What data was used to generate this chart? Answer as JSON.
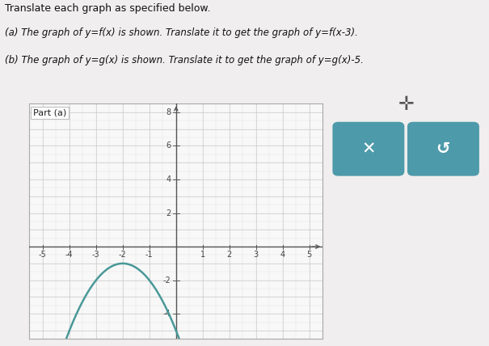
{
  "title_text": "Translate each graph as specified below.",
  "part_a_label": "Part (a)",
  "instruction_a": "(a) The graph of y=f(x) is shown. Translate it to get the graph of y=f(x-3).",
  "instruction_b": "(b) The graph of y=g(x) is shown. Translate it to get the graph of y=g(x)-5.",
  "xlim": [
    -5.5,
    5.5
  ],
  "ylim": [
    -5.5,
    8.5
  ],
  "xtick_vals": [
    -5,
    -4,
    -3,
    -2,
    -1,
    1,
    2,
    3,
    4,
    5
  ],
  "ytick_vals": [
    2,
    4,
    6,
    8,
    -2,
    -4
  ],
  "curve_color": "#4a9898",
  "curve_linewidth": 1.8,
  "vertex_x": -2,
  "vertex_y": -1,
  "parabola_a": -1,
  "page_bg": "#f0eeee",
  "grid_color": "#c8c8c8",
  "subgrid_color": "#e0e0e0",
  "panel_bg": "#f8f8f8",
  "axis_color": "#555555",
  "box_color": "#4d9aaa",
  "text_color": "#111111",
  "label_fontsize": 7,
  "title_fontsize": 9,
  "instr_fontsize": 8.5
}
